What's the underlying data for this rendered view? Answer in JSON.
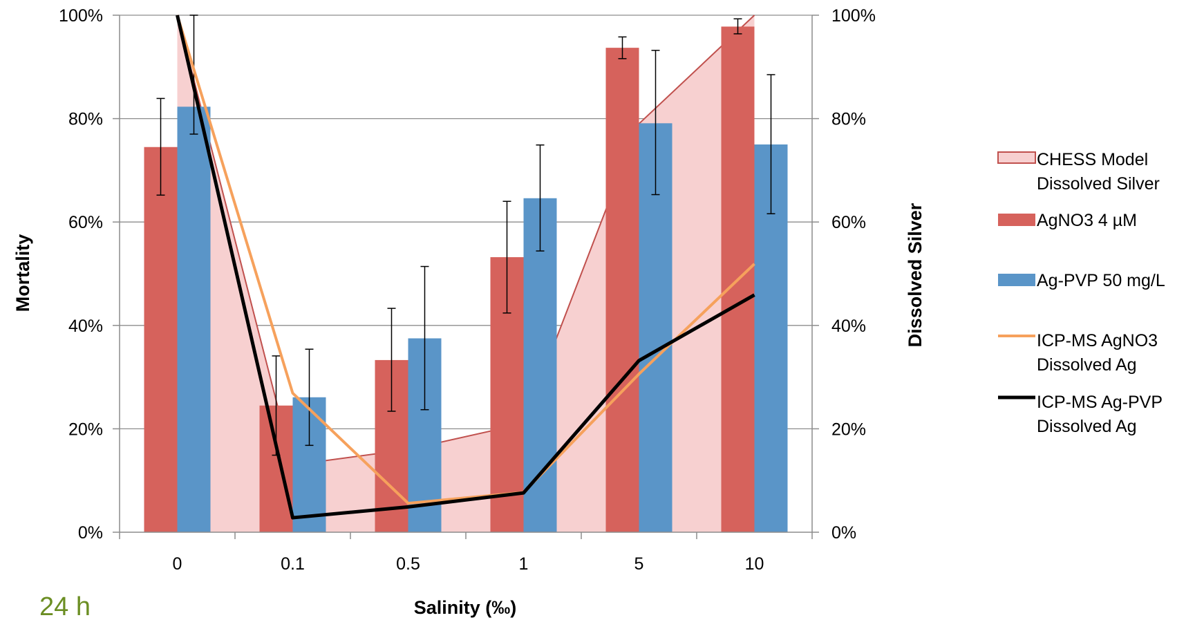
{
  "chart_data": {
    "type": "bar",
    "categories": [
      "0",
      "0.1",
      "0.5",
      "1",
      "5",
      "10"
    ],
    "xlabel": "Salinity (‰)",
    "ylabel": "Mortality",
    "y2label": "Dissolved Silver",
    "corner_label": "24 h",
    "y_ticks": [
      "0%",
      "20%",
      "40%",
      "60%",
      "80%",
      "100%"
    ],
    "y2_ticks": [
      "0%",
      "20%",
      "40%",
      "60%",
      "80%",
      "100%"
    ],
    "ylim": [
      0,
      100
    ],
    "y2lim": [
      0,
      100
    ],
    "grid": true,
    "legend_position": "right",
    "area": {
      "name": "CHESS Model Dissolved Silver",
      "name_lines": [
        "CHESS Model",
        "Dissolved Silver"
      ],
      "axis": "secondary",
      "values": [
        100,
        13,
        16,
        21,
        79,
        100
      ],
      "fill": "#f7d0d0",
      "stroke": "#c0504d"
    },
    "bars": [
      {
        "name": "AgNO3 4 µM",
        "name_lines": [
          "AgNO3 4 µM"
        ],
        "color": "#d6625c",
        "values": [
          74.5,
          24.5,
          33.3,
          53.2,
          93.7,
          97.8
        ],
        "err_low": [
          65.2,
          14.9,
          23.4,
          42.4,
          91.6,
          96.4
        ],
        "err_high": [
          83.9,
          34.1,
          43.3,
          64.0,
          95.8,
          99.3
        ]
      },
      {
        "name": "Ag-PVP 50 mg/L",
        "name_lines": [
          "Ag-PVP 50 mg/L"
        ],
        "color": "#5a95c8",
        "values": [
          82.3,
          26.1,
          37.5,
          64.6,
          79.1,
          75.0
        ],
        "err_low": [
          77.0,
          16.8,
          23.7,
          54.4,
          65.3,
          61.6
        ],
        "err_high": [
          100.0,
          35.4,
          51.4,
          74.9,
          93.2,
          88.5
        ]
      }
    ],
    "lines": [
      {
        "name": "ICP-MS AgNO3 Dissolved Ag",
        "name_lines": [
          "ICP-MS AgNO3",
          "Dissolved Ag"
        ],
        "axis": "secondary",
        "color": "#f6a15c",
        "values": [
          100,
          26.9,
          5.6,
          7.7,
          30.6,
          51.9
        ]
      },
      {
        "name": "ICP-MS Ag-PVP Dissolved Ag",
        "name_lines": [
          "ICP-MS Ag-PVP",
          "Dissolved Ag"
        ],
        "axis": "secondary",
        "color": "#000000",
        "values": [
          100,
          2.8,
          4.9,
          7.6,
          33.2,
          45.9
        ]
      }
    ]
  },
  "colors": {
    "corner_label": "#6b8e23",
    "grid": "#8c8c8c",
    "axis": "#8c8c8c"
  }
}
